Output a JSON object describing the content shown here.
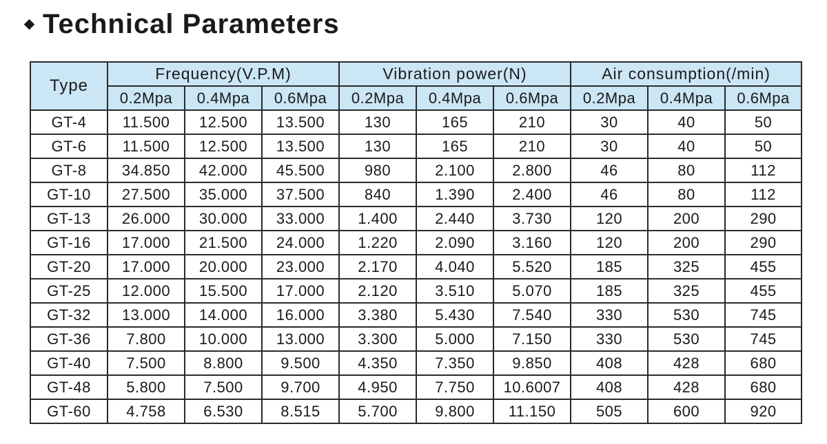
{
  "title": "Technical Parameters",
  "table": {
    "type_header": "Type",
    "groups": [
      {
        "label": "Frequency(V.P.M)",
        "subs": [
          "0.2Mpa",
          "0.4Mpa",
          "0.6Mpa"
        ]
      },
      {
        "label": "Vibration power(N)",
        "subs": [
          "0.2Mpa",
          "0.4Mpa",
          "0.6Mpa"
        ]
      },
      {
        "label": "Air consumption(/min)",
        "subs": [
          "0.2Mpa",
          "0.4Mpa",
          "0.6Mpa"
        ]
      }
    ],
    "rows": [
      {
        "type": "GT-4",
        "values": [
          "11.500",
          "12.500",
          "13.500",
          "130",
          "165",
          "210",
          "30",
          "40",
          "50"
        ]
      },
      {
        "type": "GT-6",
        "values": [
          "11.500",
          "12.500",
          "13.500",
          "130",
          "165",
          "210",
          "30",
          "40",
          "50"
        ]
      },
      {
        "type": "GT-8",
        "values": [
          "34.850",
          "42.000",
          "45.500",
          "980",
          "2.100",
          "2.800",
          "46",
          "80",
          "112"
        ]
      },
      {
        "type": "GT-10",
        "values": [
          "27.500",
          "35.000",
          "37.500",
          "840",
          "1.390",
          "2.400",
          "46",
          "80",
          "112"
        ]
      },
      {
        "type": "GT-13",
        "values": [
          "26.000",
          "30.000",
          "33.000",
          "1.400",
          "2.440",
          "3.730",
          "120",
          "200",
          "290"
        ]
      },
      {
        "type": "GT-16",
        "values": [
          "17.000",
          "21.500",
          "24.000",
          "1.220",
          "2.090",
          "3.160",
          "120",
          "200",
          "290"
        ]
      },
      {
        "type": "GT-20",
        "values": [
          "17.000",
          "20.000",
          "23.000",
          "2.170",
          "4.040",
          "5.520",
          "185",
          "325",
          "455"
        ]
      },
      {
        "type": "GT-25",
        "values": [
          "12.000",
          "15.500",
          "17.000",
          "2.120",
          "3.510",
          "5.070",
          "185",
          "325",
          "455"
        ]
      },
      {
        "type": "GT-32",
        "values": [
          "13.000",
          "14.000",
          "16.000",
          "3.380",
          "5.430",
          "7.540",
          "330",
          "530",
          "745"
        ]
      },
      {
        "type": "GT-36",
        "values": [
          "7.800",
          "10.000",
          "13.000",
          "3.300",
          "5.000",
          "7.150",
          "330",
          "530",
          "745"
        ]
      },
      {
        "type": "GT-40",
        "values": [
          "7.500",
          "8.800",
          "9.500",
          "4.350",
          "7.350",
          "9.850",
          "408",
          "428",
          "680"
        ]
      },
      {
        "type": "GT-48",
        "values": [
          "5.800",
          "7.500",
          "9.700",
          "4.950",
          "7.750",
          "10.6007",
          "408",
          "428",
          "680"
        ]
      },
      {
        "type": "GT-60",
        "values": [
          "4.758",
          "6.530",
          "8.515",
          "5.700",
          "9.800",
          "11.150",
          "505",
          "600",
          "920"
        ]
      }
    ]
  },
  "colors": {
    "header_bg": "#cbe6f5",
    "border": "#2a2a2a",
    "text": "#1a1a1a"
  }
}
